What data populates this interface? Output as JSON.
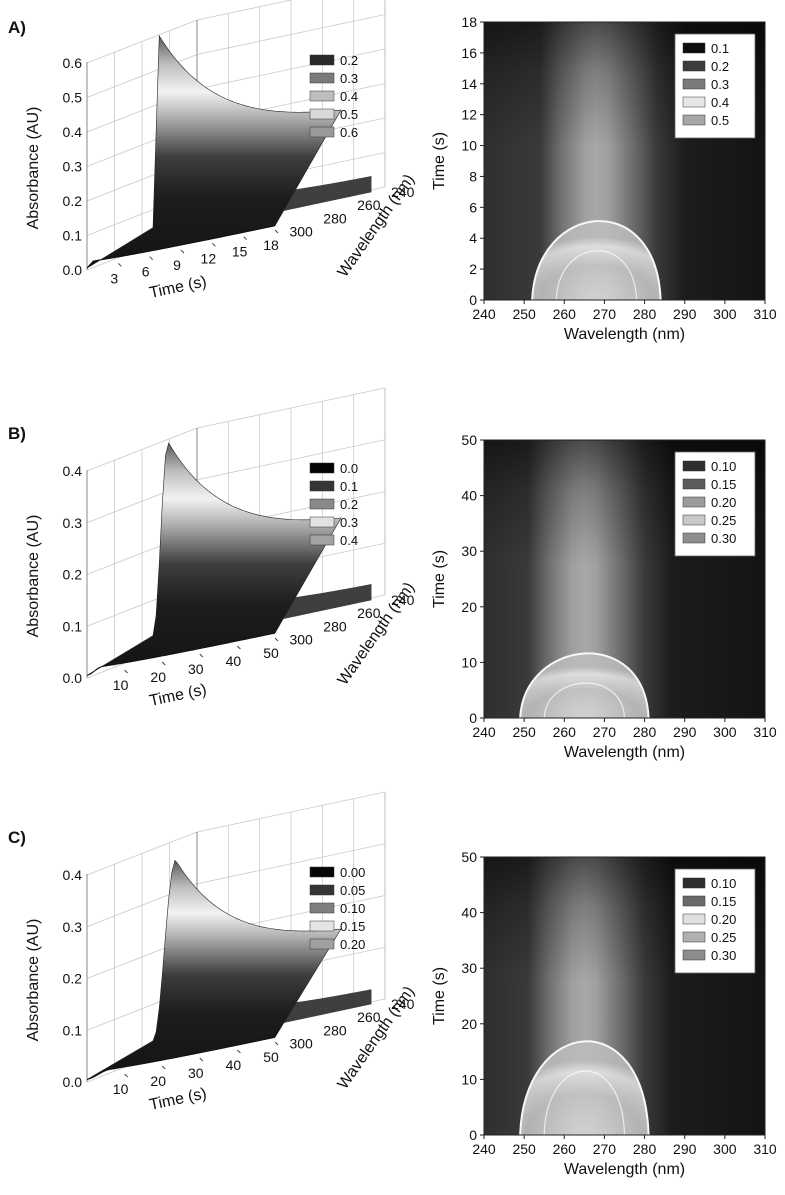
{
  "panels": [
    {
      "label": "A)",
      "surface": {
        "type": "surface",
        "zlabel": "Absorbance (AU)",
        "xlabel": "Time (s)",
        "ylabel": "Wavelength (nm)",
        "zlim": [
          0,
          0.6
        ],
        "xlim": [
          0,
          18
        ],
        "ylim": [
          240,
          305
        ],
        "z_ticks": [
          "0.0",
          "0.1",
          "0.2",
          "0.3",
          "0.4",
          "0.5",
          "0.6"
        ],
        "x_ticks": [
          "3",
          "6",
          "9",
          "12",
          "15",
          "18"
        ],
        "y_ticks": [
          "240",
          "260",
          "280",
          "300"
        ],
        "legend": [
          "0.2",
          "0.3",
          "0.4",
          "0.5",
          "0.6"
        ],
        "legend_colors": [
          "#2a2a2a",
          "#7a7a7a",
          "#bdbdbd",
          "#d9d9d9",
          "#9a9a9a"
        ],
        "peak_absorbance": 0.6,
        "peak_time": 0.6,
        "peak_wavelength": 266
      },
      "contour": {
        "type": "heatmap",
        "xlabel": "Wavelength (nm)",
        "ylabel": "Time (s)",
        "xlim": [
          240,
          310
        ],
        "ylim": [
          0,
          18
        ],
        "x_ticks": [
          "240",
          "250",
          "260",
          "270",
          "280",
          "290",
          "300",
          "310"
        ],
        "y_ticks": [
          "0",
          "2",
          "4",
          "6",
          "8",
          "10",
          "12",
          "14",
          "16",
          "18"
        ],
        "legend": [
          "0.1",
          "0.2",
          "0.3",
          "0.4",
          "0.5"
        ],
        "legend_colors": [
          "#0d0d0d",
          "#3c3c3c",
          "#7b7b7b",
          "#e6e6e6",
          "#a6a6a6"
        ],
        "center_wavelength": 268,
        "top_contour_time": 7
      }
    },
    {
      "label": "B)",
      "surface": {
        "type": "surface",
        "zlabel": "Absorbance (AU)",
        "xlabel": "Time (s)",
        "ylabel": "Wavelength (nm)",
        "zlim": [
          0,
          0.4
        ],
        "xlim": [
          0,
          50
        ],
        "ylim": [
          240,
          305
        ],
        "z_ticks": [
          "0.0",
          "0.1",
          "0.2",
          "0.3",
          "0.4"
        ],
        "x_ticks": [
          "10",
          "20",
          "30",
          "40",
          "50"
        ],
        "y_ticks": [
          "240",
          "260",
          "280",
          "300"
        ],
        "legend": [
          "0.0",
          "0.1",
          "0.2",
          "0.3",
          "0.4"
        ],
        "legend_colors": [
          "#050505",
          "#353535",
          "#8a8a8a",
          "#e2e2e2",
          "#a3a3a3"
        ],
        "peak_absorbance": 0.4,
        "peak_time": 4,
        "peak_wavelength": 266
      },
      "contour": {
        "type": "heatmap",
        "xlabel": "Wavelength (nm)",
        "ylabel": "Time (s)",
        "xlim": [
          240,
          310
        ],
        "ylim": [
          0,
          50
        ],
        "x_ticks": [
          "240",
          "250",
          "260",
          "270",
          "280",
          "290",
          "300",
          "310"
        ],
        "y_ticks": [
          "0",
          "10",
          "20",
          "30",
          "40",
          "50"
        ],
        "legend": [
          "0.10",
          "0.15",
          "0.20",
          "0.25",
          "0.30"
        ],
        "legend_colors": [
          "#2e2e2e",
          "#5c5c5c",
          "#9c9c9c",
          "#c8c8c8",
          "#8e8e8e"
        ],
        "center_wavelength": 265,
        "top_contour_time": 16
      }
    },
    {
      "label": "C)",
      "surface": {
        "type": "surface",
        "zlabel": "Absorbance (AU)",
        "xlabel": "Time (s)",
        "ylabel": "Wavelength (nm)",
        "zlim": [
          0,
          0.4
        ],
        "xlim": [
          0,
          50
        ],
        "ylim": [
          240,
          305
        ],
        "z_ticks": [
          "0.0",
          "0.1",
          "0.2",
          "0.3",
          "0.4"
        ],
        "x_ticks": [
          "10",
          "20",
          "30",
          "40",
          "50"
        ],
        "y_ticks": [
          "240",
          "260",
          "280",
          "300"
        ],
        "legend": [
          "0.00",
          "0.05",
          "0.10",
          "0.15",
          "0.20"
        ],
        "legend_colors": [
          "#050505",
          "#353535",
          "#7f7f7f",
          "#e4e4e4",
          "#a0a0a0"
        ],
        "peak_absorbance": 0.37,
        "peak_time": 6,
        "peak_wavelength": 266
      },
      "contour": {
        "type": "heatmap",
        "xlabel": "Wavelength (nm)",
        "ylabel": "Time (s)",
        "xlim": [
          240,
          310
        ],
        "ylim": [
          0,
          50
        ],
        "x_ticks": [
          "240",
          "250",
          "260",
          "270",
          "280",
          "290",
          "300",
          "310"
        ],
        "y_ticks": [
          "0",
          "10",
          "20",
          "30",
          "40",
          "50"
        ],
        "legend": [
          "0.10",
          "0.15",
          "0.20",
          "0.25",
          "0.30"
        ],
        "legend_colors": [
          "#2e2e2e",
          "#6a6a6a",
          "#e0e0e0",
          "#b0b0b0",
          "#8c8c8c"
        ],
        "center_wavelength": 265,
        "top_contour_time": 23
      }
    }
  ]
}
